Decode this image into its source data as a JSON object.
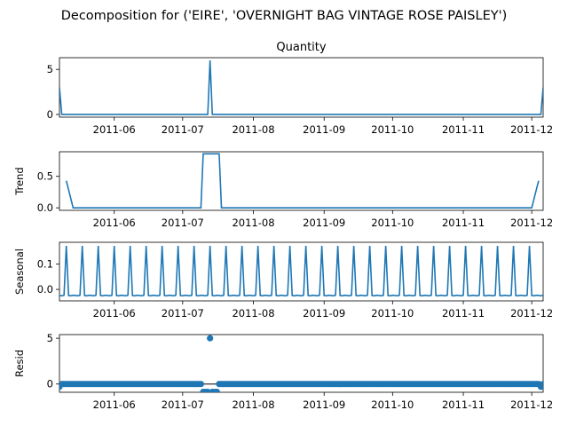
{
  "suptitle": "Decomposition for ('EIRE', 'OVERNIGHT BAG VINTAGE ROSE PAISLEY')",
  "colors": {
    "line": "#1f77b4",
    "marker": "#1f77b4",
    "zero_line": "#000000"
  },
  "x_ticks": [
    "2011-06",
    "2011-07",
    "2011-08",
    "2011-09",
    "2011-10",
    "2011-11",
    "2011-12"
  ],
  "x_tick_dates": [
    "2011-06-01",
    "2011-07-01",
    "2011-08-01",
    "2011-09-01",
    "2011-10-01",
    "2011-11-01",
    "2011-12-01"
  ],
  "xlim": [
    "2011-05-08",
    "2011-12-06"
  ],
  "chart_data": [
    {
      "type": "line",
      "title": "Quantity",
      "ylabel": "",
      "ylim": [
        -0.3,
        6.3
      ],
      "yticks": [
        0,
        5
      ],
      "series": [
        {
          "x": [
            "2011-05-08",
            "2011-05-09",
            "2011-07-12",
            "2011-07-13",
            "2011-07-14",
            "2011-12-05",
            "2011-12-06"
          ],
          "y": [
            3,
            0,
            0,
            6,
            0,
            0,
            3
          ]
        }
      ]
    },
    {
      "type": "line",
      "ylabel": "Trend",
      "ylim": [
        -0.04,
        0.89
      ],
      "yticks": [
        0.0,
        0.5
      ],
      "series": [
        {
          "x": [
            "2011-05-11",
            "2011-05-14",
            "2011-07-09",
            "2011-07-10",
            "2011-07-17",
            "2011-07-18",
            "2011-12-01",
            "2011-12-04"
          ],
          "y": [
            0.43,
            0,
            0,
            0.857,
            0.857,
            0,
            0,
            0.43
          ]
        }
      ]
    },
    {
      "type": "line",
      "ylabel": "Seasonal",
      "ylim": [
        -0.045,
        0.185
      ],
      "yticks": [
        0.0,
        0.1
      ],
      "seasonal_period_days": 7,
      "seasonal_pattern": [
        -0.024,
        -0.025,
        -0.023,
        0.171,
        -0.024,
        -0.025,
        -0.023
      ]
    },
    {
      "type": "scatter",
      "ylabel": "Resid",
      "ylim": [
        -0.9,
        5.4
      ],
      "yticks": [
        0,
        5
      ],
      "baseline": 0,
      "dates_start": "2011-05-08",
      "dates_end": "2011-12-06",
      "outliers": [
        {
          "x": "2011-07-10",
          "y": -0.86
        },
        {
          "x": "2011-07-11",
          "y": -0.86
        },
        {
          "x": "2011-07-12",
          "y": -0.86
        },
        {
          "x": "2011-07-13",
          "y": 5.0
        },
        {
          "x": "2011-07-14",
          "y": -0.86
        },
        {
          "x": "2011-07-15",
          "y": -0.86
        },
        {
          "x": "2011-07-16",
          "y": -0.86
        },
        {
          "x": "2011-05-08",
          "y": -0.3
        },
        {
          "x": "2011-12-05",
          "y": -0.3
        }
      ]
    }
  ]
}
